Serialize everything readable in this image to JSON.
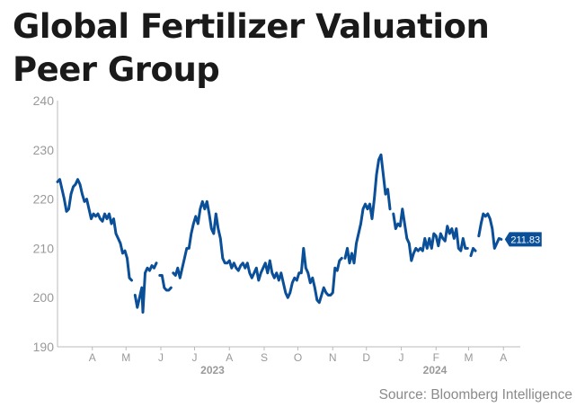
{
  "title": "Global Fertilizer Valuation Peer Group",
  "source": "Source: Bloomberg Intelligence",
  "chart_data": {
    "type": "line",
    "title": "Global Fertilizer Valuation Peer Group",
    "xlabel": "",
    "ylabel": "",
    "ylim": [
      190,
      240
    ],
    "yticks": [
      190,
      200,
      210,
      220,
      230,
      240
    ],
    "xlim": [
      "2023-03-15",
      "2024-04-30"
    ],
    "month_ticks": [
      {
        "label": "A",
        "date": "2023-04-15"
      },
      {
        "label": "M",
        "date": "2023-05-15"
      },
      {
        "label": "J",
        "date": "2023-06-15"
      },
      {
        "label": "J",
        "date": "2023-07-15"
      },
      {
        "label": "A",
        "date": "2023-08-15"
      },
      {
        "label": "S",
        "date": "2023-09-15"
      },
      {
        "label": "O",
        "date": "2023-10-15"
      },
      {
        "label": "N",
        "date": "2023-11-15"
      },
      {
        "label": "D",
        "date": "2023-12-15"
      },
      {
        "label": "J",
        "date": "2024-01-15"
      },
      {
        "label": "F",
        "date": "2024-02-15"
      },
      {
        "label": "M",
        "date": "2024-03-15"
      },
      {
        "label": "A",
        "date": "2024-04-15"
      }
    ],
    "year_labels": [
      {
        "label": "2023",
        "date": "2023-07-31"
      },
      {
        "label": "2024",
        "date": "2024-02-14"
      }
    ],
    "grid": false,
    "legend": "none",
    "last_value_label": "211.83",
    "colors": {
      "line": "#0a4f98",
      "axis": "#bbbbbb",
      "tick_text": "#999999",
      "label_bg": "#0a4f98"
    },
    "series": [
      {
        "segments": [
          [
            [
              "2023-03-15",
              223.5
            ],
            [
              "2023-03-17",
              224
            ],
            [
              "2023-03-19",
              222
            ],
            [
              "2023-03-21",
              220
            ],
            [
              "2023-03-23",
              217.5
            ],
            [
              "2023-03-25",
              218
            ],
            [
              "2023-03-27",
              221
            ],
            [
              "2023-03-29",
              222.5
            ],
            [
              "2023-03-31",
              223
            ],
            [
              "2023-04-02",
              224
            ],
            [
              "2023-04-04",
              223
            ],
            [
              "2023-04-06",
              221
            ],
            [
              "2023-04-08",
              219.5
            ],
            [
              "2023-04-10",
              220
            ],
            [
              "2023-04-12",
              218
            ],
            [
              "2023-04-14",
              216
            ],
            [
              "2023-04-16",
              217
            ],
            [
              "2023-04-18",
              216.5
            ],
            [
              "2023-04-20",
              217
            ],
            [
              "2023-04-22",
              216
            ],
            [
              "2023-04-24",
              215.5
            ],
            [
              "2023-04-26",
              217
            ],
            [
              "2023-04-28",
              216
            ],
            [
              "2023-04-30",
              217
            ],
            [
              "2023-05-02",
              215
            ],
            [
              "2023-05-04",
              216
            ],
            [
              "2023-05-06",
              213
            ],
            [
              "2023-05-08",
              212
            ],
            [
              "2023-05-10",
              211
            ],
            [
              "2023-05-12",
              209
            ],
            [
              "2023-05-14",
              209.5
            ],
            [
              "2023-05-16",
              208
            ],
            [
              "2023-05-18",
              204
            ],
            [
              "2023-05-20",
              203.5
            ]
          ],
          [
            [
              "2023-05-23",
              200.5
            ],
            [
              "2023-05-25",
              198
            ],
            [
              "2023-05-27",
              200
            ],
            [
              "2023-05-29",
              202
            ],
            [
              "2023-05-30",
              197
            ],
            [
              "2023-06-01",
              205
            ],
            [
              "2023-06-03",
              206
            ],
            [
              "2023-06-05",
              205.5
            ],
            [
              "2023-06-07",
              206.5
            ],
            [
              "2023-06-09",
              206
            ],
            [
              "2023-06-11",
              207
            ]
          ],
          [
            [
              "2023-06-14",
              204.5
            ],
            [
              "2023-06-16",
              204.5
            ],
            [
              "2023-06-18",
              202
            ],
            [
              "2023-06-20",
              201.5
            ],
            [
              "2023-06-22",
              201.5
            ],
            [
              "2023-06-24",
              202
            ]
          ],
          [
            [
              "2023-06-26",
              205
            ],
            [
              "2023-06-28",
              204.5
            ],
            [
              "2023-06-30",
              206
            ],
            [
              "2023-07-02",
              204
            ],
            [
              "2023-07-04",
              206
            ],
            [
              "2023-07-06",
              208
            ],
            [
              "2023-07-08",
              210
            ],
            [
              "2023-07-10",
              210
            ],
            [
              "2023-07-12",
              213
            ],
            [
              "2023-07-14",
              215
            ],
            [
              "2023-07-16",
              216.5
            ],
            [
              "2023-07-18",
              215
            ],
            [
              "2023-07-20",
              218
            ],
            [
              "2023-07-22",
              219.5
            ],
            [
              "2023-07-24",
              218
            ],
            [
              "2023-07-26",
              219.5
            ],
            [
              "2023-07-28",
              217
            ],
            [
              "2023-07-30",
              214
            ],
            [
              "2023-08-01",
              213
            ],
            [
              "2023-08-03",
              217
            ],
            [
              "2023-08-05",
              214
            ],
            [
              "2023-08-07",
              212
            ],
            [
              "2023-08-09",
              208
            ],
            [
              "2023-08-11",
              207
            ],
            [
              "2023-08-13",
              207
            ],
            [
              "2023-08-15",
              207.5
            ],
            [
              "2023-08-17",
              206
            ],
            [
              "2023-08-19",
              207
            ],
            [
              "2023-08-21",
              206
            ],
            [
              "2023-08-23",
              205.5
            ],
            [
              "2023-08-25",
              206.5
            ],
            [
              "2023-08-27",
              207
            ],
            [
              "2023-08-29",
              206
            ],
            [
              "2023-08-31",
              207
            ],
            [
              "2023-09-02",
              205
            ],
            [
              "2023-09-04",
              204
            ],
            [
              "2023-09-06",
              205
            ],
            [
              "2023-09-08",
              206
            ],
            [
              "2023-09-10",
              203.5
            ],
            [
              "2023-09-12",
              205
            ],
            [
              "2023-09-14",
              206
            ],
            [
              "2023-09-16",
              207
            ],
            [
              "2023-09-18",
              205
            ],
            [
              "2023-09-20",
              207.5
            ],
            [
              "2023-09-22",
              205
            ],
            [
              "2023-09-24",
              204
            ],
            [
              "2023-09-26",
              205
            ],
            [
              "2023-09-28",
              203.5
            ],
            [
              "2023-09-30",
              205
            ],
            [
              "2023-10-02",
              203
            ],
            [
              "2023-10-04",
              201
            ],
            [
              "2023-10-06",
              200
            ],
            [
              "2023-10-08",
              201
            ],
            [
              "2023-10-10",
              203
            ],
            [
              "2023-10-12",
              204
            ],
            [
              "2023-10-14",
              203.5
            ],
            [
              "2023-10-16",
              205
            ],
            [
              "2023-10-18",
              205
            ],
            [
              "2023-10-20",
              210
            ],
            [
              "2023-10-22",
              206
            ],
            [
              "2023-10-24",
              205
            ],
            [
              "2023-10-26",
              203
            ],
            [
              "2023-10-28",
              204
            ],
            [
              "2023-10-30",
              202
            ],
            [
              "2023-11-01",
              199.5
            ],
            [
              "2023-11-03",
              199
            ],
            [
              "2023-11-05",
              200.5
            ],
            [
              "2023-11-07",
              202
            ],
            [
              "2023-11-09",
              201
            ],
            [
              "2023-11-11",
              200.5
            ],
            [
              "2023-11-13",
              200.5
            ],
            [
              "2023-11-15",
              201
            ],
            [
              "2023-11-17",
              206
            ],
            [
              "2023-11-19",
              205.5
            ],
            [
              "2023-11-21",
              207.5
            ],
            [
              "2023-11-23",
              208
            ]
          ],
          [
            [
              "2023-11-26",
              208
            ],
            [
              "2023-11-28",
              210
            ],
            [
              "2023-11-30",
              207
            ],
            [
              "2023-12-02",
              209
            ],
            [
              "2023-12-04",
              207
            ],
            [
              "2023-12-06",
              211
            ],
            [
              "2023-12-08",
              213
            ],
            [
              "2023-12-10",
              215
            ],
            [
              "2023-12-12",
              218
            ],
            [
              "2023-12-14",
              219
            ],
            [
              "2023-12-16",
              218
            ],
            [
              "2023-12-18",
              219
            ],
            [
              "2023-12-20",
              216
            ],
            [
              "2023-12-22",
              220
            ],
            [
              "2023-12-24",
              225
            ],
            [
              "2023-12-26",
              228
            ],
            [
              "2023-12-28",
              229
            ],
            [
              "2023-12-30",
              225
            ],
            [
              "2024-01-01",
              221
            ],
            [
              "2024-01-03",
              222
            ],
            [
              "2024-01-05",
              218
            ]
          ],
          [
            [
              "2024-01-08",
              217
            ],
            [
              "2024-01-10",
              214
            ],
            [
              "2024-01-12",
              215
            ],
            [
              "2024-01-14",
              214.5
            ],
            [
              "2024-01-16",
              218
            ],
            [
              "2024-01-18",
              215
            ],
            [
              "2024-01-20",
              212
            ],
            [
              "2024-01-22",
              211
            ],
            [
              "2024-01-24",
              207.5
            ],
            [
              "2024-01-26",
              209
            ],
            [
              "2024-01-28",
              210
            ],
            [
              "2024-01-30",
              209.5
            ],
            [
              "2024-02-01",
              210
            ],
            [
              "2024-02-03",
              209.5
            ],
            [
              "2024-02-05",
              212
            ],
            [
              "2024-02-07",
              210
            ],
            [
              "2024-02-09",
              212
            ],
            [
              "2024-02-11",
              210
            ],
            [
              "2024-02-13",
              213
            ],
            [
              "2024-02-15",
              212.5
            ],
            [
              "2024-02-17",
              210.5
            ],
            [
              "2024-02-19",
              213
            ],
            [
              "2024-02-21",
              212
            ],
            [
              "2024-02-23",
              211.5
            ],
            [
              "2024-02-25",
              214.5
            ],
            [
              "2024-02-27",
              213
            ],
            [
              "2024-02-29",
              214
            ],
            [
              "2024-03-02",
              212
            ],
            [
              "2024-03-04",
              214
            ],
            [
              "2024-03-06",
              210
            ],
            [
              "2024-03-08",
              209.5
            ],
            [
              "2024-03-10",
              212
            ],
            [
              "2024-03-12",
              210
            ],
            [
              "2024-03-14",
              210
            ]
          ],
          [
            [
              "2024-03-17",
              208.5
            ],
            [
              "2024-03-19",
              210
            ],
            [
              "2024-03-21",
              209.5
            ]
          ],
          [
            [
              "2024-03-24",
              212.5
            ],
            [
              "2024-03-26",
              215
            ],
            [
              "2024-03-28",
              217
            ],
            [
              "2024-03-30",
              216.5
            ],
            [
              "2024-04-01",
              217
            ],
            [
              "2024-04-03",
              216
            ],
            [
              "2024-04-05",
              214
            ],
            [
              "2024-04-07",
              210
            ],
            [
              "2024-04-09",
              211
            ],
            [
              "2024-04-11",
              212
            ],
            [
              "2024-04-13",
              211.83
            ]
          ]
        ]
      }
    ]
  }
}
